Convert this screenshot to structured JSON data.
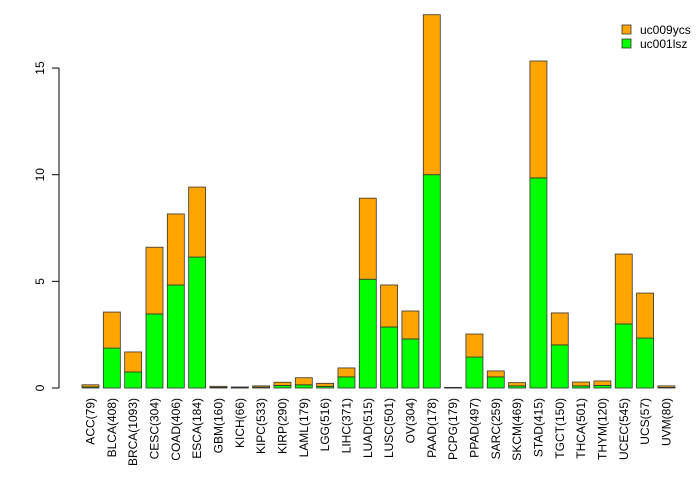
{
  "chart_data": {
    "type": "bar",
    "stacked": true,
    "title": "",
    "xlabel": "",
    "ylabel": "",
    "ylim": [
      0,
      17.5
    ],
    "yticks": [
      0,
      5,
      10,
      15
    ],
    "grid": false,
    "legend_position": "top-right",
    "categories": [
      "ACC(79)",
      "BLCA(408)",
      "BRCA(1093)",
      "CESC(304)",
      "COAD(406)",
      "ESCA(184)",
      "GBM(160)",
      "KICH(66)",
      "KIPC(533)",
      "KIRP(290)",
      "LAML(179)",
      "LGG(516)",
      "LIHC(371)",
      "LUAD(515)",
      "LUSC(501)",
      "OV(304)",
      "PAAD(178)",
      "PCPG(179)",
      "PPAD(497)",
      "SARC(259)",
      "SKCM(469)",
      "STAD(415)",
      "TGCT(150)",
      "THCA(501)",
      "THYM(120)",
      "UCEC(545)",
      "UCS(57)",
      "UVM(80)"
    ],
    "series": [
      {
        "name": "uc001lsz",
        "color": "#00ff00",
        "values": [
          0.05,
          1.87,
          0.75,
          3.47,
          4.83,
          6.14,
          0.03,
          0.02,
          0.04,
          0.12,
          0.15,
          0.08,
          0.52,
          5.1,
          2.86,
          2.3,
          10.0,
          0.02,
          1.45,
          0.52,
          0.1,
          9.85,
          2.02,
          0.1,
          0.12,
          3.0,
          2.34,
          0.03
        ]
      },
      {
        "name": "uc009ycs",
        "color": "#ffa500",
        "values": [
          0.1,
          1.69,
          0.94,
          3.13,
          3.33,
          3.28,
          0.05,
          0.03,
          0.06,
          0.15,
          0.33,
          0.14,
          0.42,
          3.8,
          1.97,
          1.31,
          7.5,
          0.01,
          1.08,
          0.28,
          0.15,
          5.48,
          1.5,
          0.18,
          0.21,
          3.28,
          2.11,
          0.07
        ]
      }
    ]
  }
}
